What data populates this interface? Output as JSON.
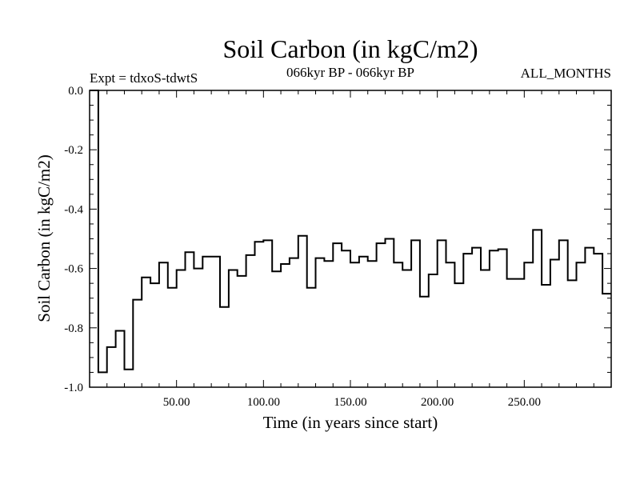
{
  "chart_data": {
    "type": "line",
    "style": "step",
    "title": "Soil Carbon (in kgC/m2)",
    "subtitle_left": "Expt = tdxoS-tdwtS",
    "subtitle_center": "066kyr BP - 066kyr BP",
    "subtitle_right": "ALL_MONTHS",
    "xlabel": "Time (in years since start)",
    "ylabel": "Soil Carbon (in kgC/m2)",
    "xlim": [
      0,
      300
    ],
    "ylim": [
      -1.0,
      0.0
    ],
    "x_ticks": [
      50,
      100,
      150,
      200,
      250
    ],
    "x_tick_labels": [
      "50.00",
      "100.00",
      "150.00",
      "200.00",
      "250.00"
    ],
    "y_ticks": [
      0.0,
      -0.2,
      -0.4,
      -0.6,
      -0.8,
      -1.0
    ],
    "y_tick_labels": [
      "0.0",
      "-0.2",
      "-0.4",
      "-0.6",
      "-0.8",
      "-1.0"
    ],
    "grid": false,
    "line_color": "#000000",
    "x": [
      0,
      5,
      10,
      15,
      20,
      25,
      30,
      35,
      40,
      45,
      50,
      55,
      60,
      65,
      70,
      75,
      80,
      85,
      90,
      95,
      100,
      105,
      110,
      115,
      120,
      125,
      130,
      135,
      140,
      145,
      150,
      155,
      160,
      165,
      170,
      175,
      180,
      185,
      190,
      195,
      200,
      205,
      210,
      215,
      220,
      225,
      230,
      235,
      240,
      245,
      250,
      255,
      260,
      265,
      270,
      275,
      280,
      285,
      290,
      295
    ],
    "y": [
      0.0,
      -0.95,
      -0.865,
      -0.81,
      -0.94,
      -0.705,
      -0.63,
      -0.65,
      -0.58,
      -0.665,
      -0.605,
      -0.545,
      -0.6,
      -0.56,
      -0.56,
      -0.73,
      -0.605,
      -0.625,
      -0.555,
      -0.51,
      -0.505,
      -0.61,
      -0.585,
      -0.565,
      -0.49,
      -0.665,
      -0.565,
      -0.575,
      -0.515,
      -0.54,
      -0.58,
      -0.56,
      -0.575,
      -0.515,
      -0.5,
      -0.58,
      -0.605,
      -0.505,
      -0.695,
      -0.62,
      -0.505,
      -0.58,
      -0.65,
      -0.55,
      -0.53,
      -0.605,
      -0.54,
      -0.535,
      -0.635,
      -0.635,
      -0.58,
      -0.47,
      -0.655,
      -0.57,
      -0.505,
      -0.64,
      -0.58,
      -0.53,
      -0.55,
      -0.685
    ]
  }
}
